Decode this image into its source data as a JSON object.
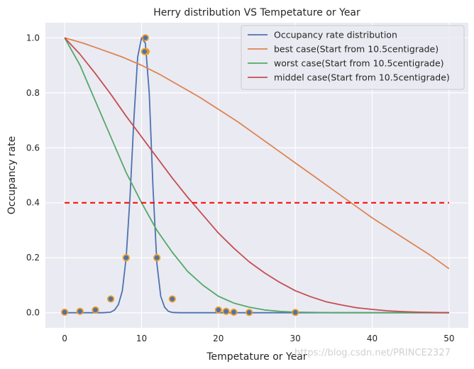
{
  "chart_data": {
    "type": "line",
    "title": "Herry distribution VS Tempetature or Year",
    "xlabel": "Tempetature or Year",
    "ylabel": "Occupancy rate",
    "xlim": [
      -2.5,
      52.5
    ],
    "ylim": [
      -0.055,
      1.055
    ],
    "xticks": [
      0,
      10,
      20,
      30,
      40,
      50
    ],
    "yticks": [
      0.0,
      0.2,
      0.4,
      0.6,
      0.8,
      1.0
    ],
    "xtick_labels": [
      "0",
      "10",
      "20",
      "30",
      "40",
      "50"
    ],
    "ytick_labels": [
      "0.0",
      "0.2",
      "0.4",
      "0.6",
      "0.8",
      "1.0"
    ],
    "grid": true,
    "legend_position": "top-right",
    "series": [
      {
        "name": "Occupancy rate distribution",
        "color": "#4c72b0",
        "x": [
          0,
          2,
          4,
          5,
          6,
          6.5,
          7,
          7.5,
          8,
          8.5,
          9,
          9.5,
          10,
          10.5,
          11,
          11.5,
          12,
          12.5,
          13,
          13.5,
          14,
          15,
          20,
          30,
          50
        ],
        "y": [
          0,
          0,
          0,
          0,
          0.002,
          0.01,
          0.03,
          0.08,
          0.2,
          0.42,
          0.7,
          0.93,
          1.0,
          0.98,
          0.8,
          0.45,
          0.18,
          0.06,
          0.02,
          0.005,
          0.001,
          0,
          0,
          0,
          0
        ]
      },
      {
        "name": "best case(Start from 10.5centigrade)",
        "color": "#dd8452",
        "x": [
          0,
          2.5,
          5,
          7.5,
          10,
          12.5,
          15,
          17.5,
          20,
          22.5,
          25,
          27.5,
          30,
          32.5,
          35,
          37.5,
          40,
          42.5,
          45,
          47.5,
          50
        ],
        "y": [
          1.0,
          0.98,
          0.955,
          0.93,
          0.9,
          0.865,
          0.825,
          0.785,
          0.74,
          0.695,
          0.645,
          0.595,
          0.545,
          0.495,
          0.445,
          0.395,
          0.345,
          0.3,
          0.255,
          0.21,
          0.16
        ]
      },
      {
        "name": "worst case(Start from 10.5centigrade)",
        "color": "#55a868",
        "x": [
          0,
          2,
          4,
          6,
          8,
          10,
          12,
          14,
          16,
          18,
          20,
          22,
          24,
          26,
          28,
          30,
          35,
          40,
          45,
          50
        ],
        "y": [
          1.0,
          0.9,
          0.77,
          0.64,
          0.51,
          0.4,
          0.3,
          0.22,
          0.15,
          0.1,
          0.06,
          0.035,
          0.02,
          0.01,
          0.005,
          0.002,
          0,
          0,
          0,
          0
        ]
      },
      {
        "name": "middel case(Start from 10.5centigrade)",
        "color": "#c44e52",
        "x": [
          0,
          2,
          4,
          6,
          8,
          10,
          12,
          14,
          16,
          18,
          20,
          22,
          24,
          26,
          28,
          30,
          32,
          34,
          36,
          38,
          40,
          42,
          44,
          46,
          48,
          50
        ],
        "y": [
          1.0,
          0.94,
          0.87,
          0.795,
          0.715,
          0.64,
          0.565,
          0.49,
          0.42,
          0.355,
          0.29,
          0.235,
          0.185,
          0.145,
          0.11,
          0.08,
          0.058,
          0.04,
          0.028,
          0.018,
          0.012,
          0.007,
          0.004,
          0.002,
          0.001,
          0
        ]
      }
    ],
    "scatter": {
      "name": "observed points",
      "fill": "#4c72b0",
      "edge": "#f0a020",
      "x": [
        0,
        2,
        4,
        6,
        8,
        10.5,
        10.6,
        10.4,
        12,
        14,
        20,
        21,
        22,
        24,
        30
      ],
      "y": [
        0.002,
        0.005,
        0.01,
        0.05,
        0.2,
        1.0,
        0.95,
        0.95,
        0.2,
        0.05,
        0.01,
        0.005,
        0.002,
        0.001,
        0.001
      ]
    },
    "hline": {
      "y": 0.4,
      "x_from": 0,
      "x_to": 50,
      "color": "#ff0000",
      "style": "dashed"
    }
  },
  "watermark": "https://blog.csdn.net/PRINCE2327"
}
